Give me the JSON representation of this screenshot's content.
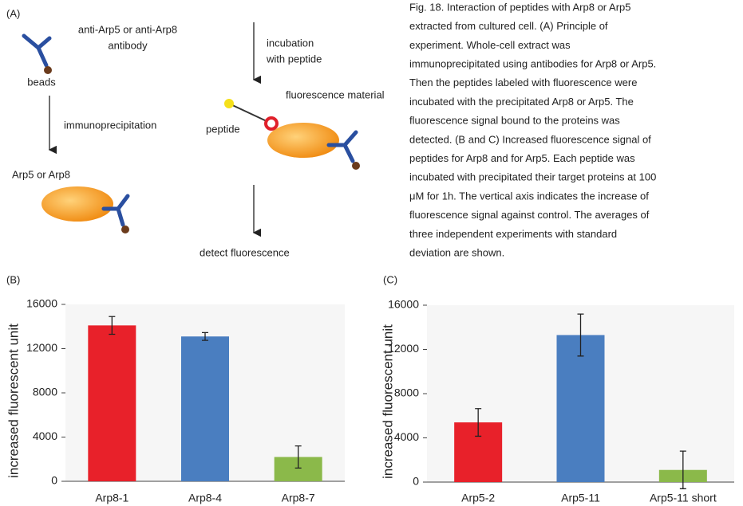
{
  "panel_a": {
    "label": "(A)",
    "antibody_label": [
      "anti-Arp5 or anti-Arp8",
      "antibody"
    ],
    "beads": "beads",
    "step1": "immunoprecipitation",
    "target": "Arp5 or Arp8",
    "step2": [
      "incubation",
      "with peptide"
    ],
    "fluor": "fluorescence material",
    "peptide": "peptide",
    "step3": "detect fluorescence"
  },
  "caption": [
    "Fig. 18. Interaction of peptides with Arp8 or Arp5",
    "extracted from cultured cell. (A) Principle of",
    "experiment. Whole-cell extract was",
    "immunoprecipitated using antibodies for Arp8 or Arp5.",
    "Then the peptides labeled with fluorescence were",
    "incubated with the precipitated Arp8 or Arp5. The",
    "fluorescence signal bound to the proteins was",
    "detected. (B and C) Increased fluorescence signal of",
    "peptides for Arp8 and for Arp5. Each peptide was",
    "incubated with precipitated their target proteins at 100",
    "μM for 1h. The vertical axis indicates the increase of",
    "fluorescence signal against control. The averages of",
    "three independent experiments with standard",
    "deviation are shown."
  ],
  "chart_data": [
    {
      "type": "bar",
      "panel": "(B)",
      "y_label": "increased fluorescent unit",
      "categories": [
        "Arp8-1",
        "Arp8-4",
        "Arp8-7"
      ],
      "values": [
        14100,
        13100,
        2200
      ],
      "errors": [
        800,
        350,
        1000
      ],
      "colors": [
        "#e8212a",
        "#4a7ec0",
        "#8bb94a"
      ],
      "ylim": [
        0,
        16000
      ],
      "yticks": [
        0,
        4000,
        8000,
        12000,
        16000
      ]
    },
    {
      "type": "bar",
      "panel": "(C)",
      "y_label": "increased fluorescent unit",
      "categories": [
        "Arp5-2",
        "Arp5-11",
        "Arp5-11 short"
      ],
      "values": [
        5400,
        13300,
        1100
      ],
      "errors": [
        1250,
        1900,
        1700
      ],
      "colors": [
        "#e8212a",
        "#4a7ec0",
        "#8bb94a"
      ],
      "ylim": [
        0,
        16000
      ],
      "yticks": [
        0,
        4000,
        8000,
        12000,
        16000
      ]
    }
  ]
}
